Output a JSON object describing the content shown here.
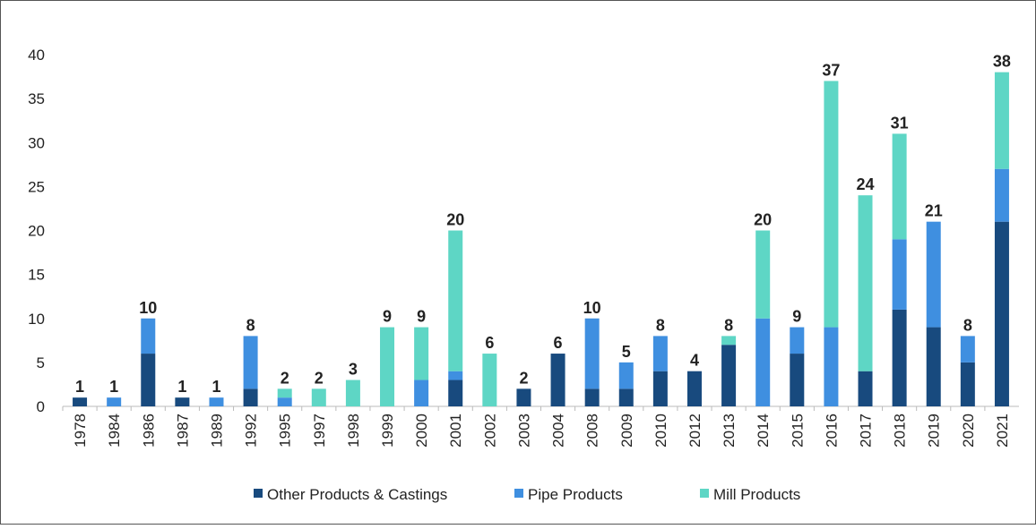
{
  "chart_data": {
    "type": "stacked_bar",
    "categories": [
      "1978",
      "1984",
      "1986",
      "1987",
      "1989",
      "1992",
      "1995",
      "1997",
      "1998",
      "1999",
      "2000",
      "2001",
      "2002",
      "2003",
      "2004",
      "2008",
      "2009",
      "2010",
      "2012",
      "2013",
      "2014",
      "2015",
      "2016",
      "2017",
      "2018",
      "2019",
      "2020",
      "2021"
    ],
    "series": [
      {
        "name": "Other Products & Castings",
        "color": "#184a7e",
        "values": [
          1,
          0,
          6,
          1,
          0,
          2,
          0,
          0,
          0,
          0,
          0,
          3,
          0,
          2,
          6,
          2,
          2,
          4,
          4,
          7,
          0,
          6,
          0,
          4,
          11,
          9,
          5,
          21
        ]
      },
      {
        "name": "Pipe Products",
        "color": "#3f8fe0",
        "values": [
          0,
          1,
          4,
          0,
          1,
          6,
          1,
          0,
          0,
          0,
          3,
          1,
          0,
          0,
          0,
          8,
          3,
          4,
          0,
          0,
          10,
          3,
          9,
          0,
          8,
          12,
          3,
          6
        ]
      },
      {
        "name": "Mill Products",
        "color": "#5ed6c5",
        "values": [
          0,
          0,
          0,
          0,
          0,
          0,
          1,
          2,
          3,
          9,
          6,
          16,
          6,
          0,
          0,
          0,
          0,
          0,
          0,
          1,
          10,
          0,
          28,
          20,
          12,
          0,
          0,
          11
        ]
      }
    ],
    "totals": [
      1,
      1,
      10,
      1,
      1,
      8,
      2,
      2,
      3,
      9,
      9,
      20,
      6,
      2,
      6,
      10,
      5,
      8,
      4,
      8,
      20,
      9,
      37,
      24,
      31,
      21,
      8,
      38
    ],
    "ylim": [
      0,
      40
    ],
    "yticks": [
      0,
      5,
      10,
      15,
      20,
      25,
      30,
      35,
      40
    ],
    "grid": false,
    "legend": "bottom"
  }
}
